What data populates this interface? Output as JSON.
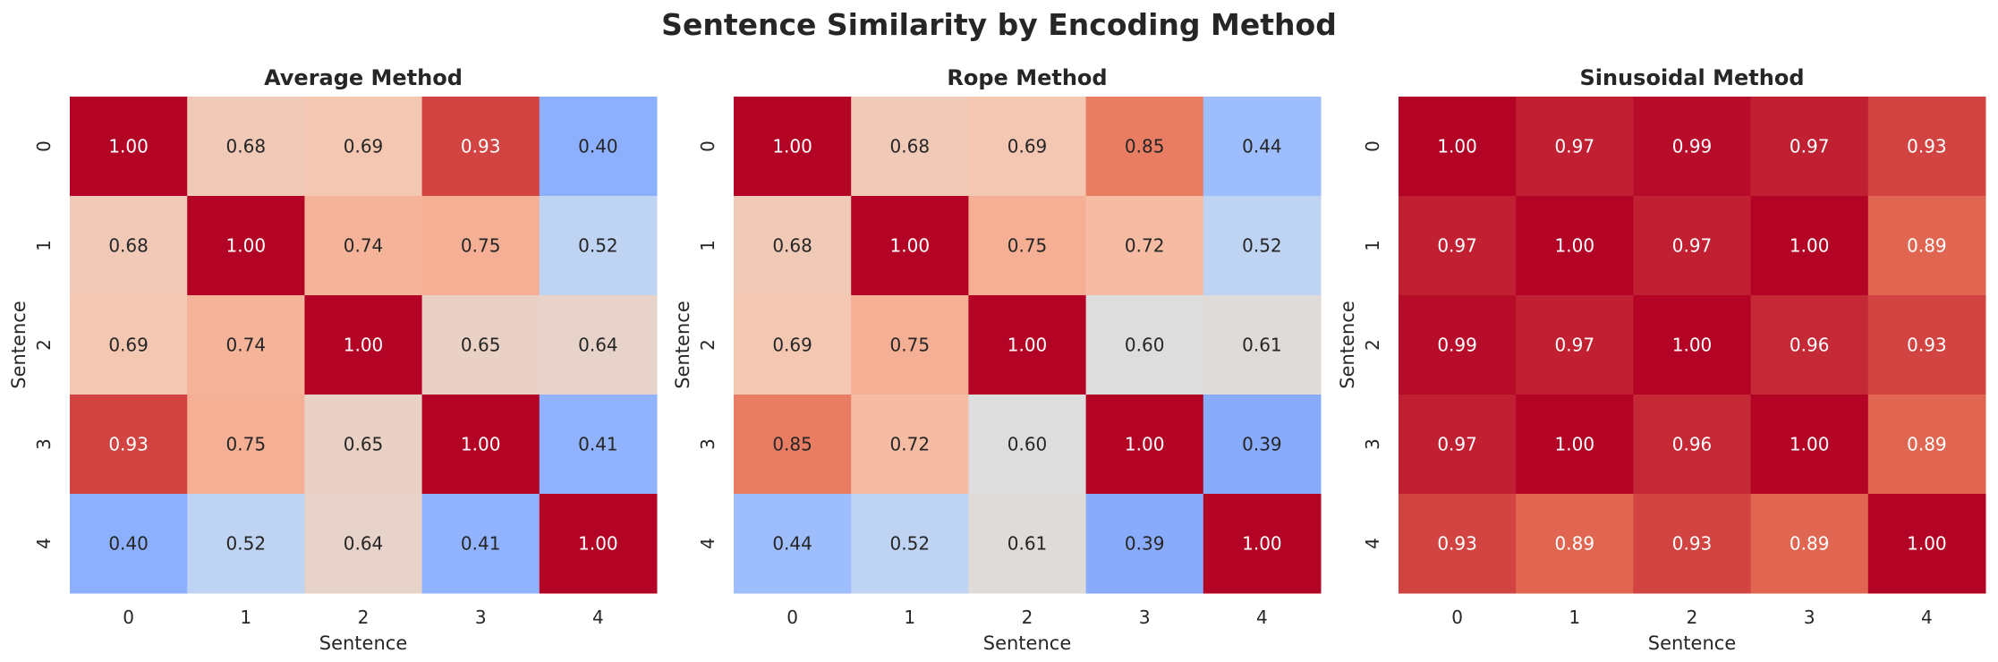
{
  "suptitle": "Sentence Similarity by Encoding Method",
  "chart_data": [
    {
      "type": "heatmap",
      "title": "Average Method",
      "xlabel": "Sentence",
      "ylabel": "Sentence",
      "x_ticks": [
        "0",
        "1",
        "2",
        "3",
        "4"
      ],
      "y_ticks": [
        "0",
        "1",
        "2",
        "3",
        "4"
      ],
      "colormap": "coolwarm",
      "vmin": 0.2,
      "vmax": 1.0,
      "values": [
        [
          1.0,
          0.68,
          0.69,
          0.93,
          0.4
        ],
        [
          0.68,
          1.0,
          0.74,
          0.75,
          0.52
        ],
        [
          0.69,
          0.74,
          1.0,
          0.65,
          0.64
        ],
        [
          0.93,
          0.75,
          0.65,
          1.0,
          0.41
        ],
        [
          0.4,
          0.52,
          0.64,
          0.41,
          1.0
        ]
      ]
    },
    {
      "type": "heatmap",
      "title": "Rope Method",
      "xlabel": "Sentence",
      "ylabel": "Sentence",
      "x_ticks": [
        "0",
        "1",
        "2",
        "3",
        "4"
      ],
      "y_ticks": [
        "0",
        "1",
        "2",
        "3",
        "4"
      ],
      "colormap": "coolwarm",
      "vmin": 0.2,
      "vmax": 1.0,
      "values": [
        [
          1.0,
          0.68,
          0.69,
          0.85,
          0.44
        ],
        [
          0.68,
          1.0,
          0.75,
          0.72,
          0.52
        ],
        [
          0.69,
          0.75,
          1.0,
          0.6,
          0.61
        ],
        [
          0.85,
          0.72,
          0.6,
          1.0,
          0.39
        ],
        [
          0.44,
          0.52,
          0.61,
          0.39,
          1.0
        ]
      ]
    },
    {
      "type": "heatmap",
      "title": "Sinusoidal Method",
      "xlabel": "Sentence",
      "ylabel": "Sentence",
      "x_ticks": [
        "0",
        "1",
        "2",
        "3",
        "4"
      ],
      "y_ticks": [
        "0",
        "1",
        "2",
        "3",
        "4"
      ],
      "colormap": "coolwarm",
      "vmin": 0.2,
      "vmax": 1.0,
      "values": [
        [
          1.0,
          0.97,
          0.99,
          0.97,
          0.93
        ],
        [
          0.97,
          1.0,
          0.97,
          1.0,
          0.89
        ],
        [
          0.99,
          0.97,
          1.0,
          0.96,
          0.93
        ],
        [
          0.97,
          1.0,
          0.96,
          1.0,
          0.89
        ],
        [
          0.93,
          0.89,
          0.93,
          0.89,
          1.0
        ]
      ]
    }
  ]
}
